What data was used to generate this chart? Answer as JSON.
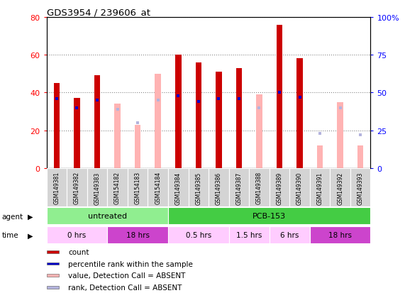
{
  "title": "GDS3954 / 239606_at",
  "samples": [
    "GSM149381",
    "GSM149382",
    "GSM149383",
    "GSM154182",
    "GSM154183",
    "GSM154184",
    "GSM149384",
    "GSM149385",
    "GSM149386",
    "GSM149387",
    "GSM149388",
    "GSM149389",
    "GSM149390",
    "GSM149391",
    "GSM149392",
    "GSM149393"
  ],
  "count_present": [
    45,
    37,
    49,
    null,
    null,
    null,
    60,
    56,
    51,
    53,
    null,
    76,
    58,
    null,
    null,
    null
  ],
  "count_absent": [
    null,
    null,
    null,
    34,
    23,
    50,
    null,
    null,
    null,
    null,
    39,
    null,
    null,
    12,
    35,
    12
  ],
  "rank_present": [
    46,
    40,
    45,
    null,
    null,
    null,
    48,
    44,
    46,
    46,
    null,
    50,
    47,
    null,
    null,
    null
  ],
  "rank_absent": [
    null,
    null,
    null,
    39,
    30,
    45,
    null,
    null,
    null,
    null,
    40,
    null,
    null,
    23,
    40,
    22
  ],
  "ylim_left": [
    0,
    80
  ],
  "ylim_right": [
    0,
    100
  ],
  "yticks_left": [
    0,
    20,
    40,
    60,
    80
  ],
  "yticks_right": [
    0,
    25,
    50,
    75,
    100
  ],
  "count_color": "#cc0000",
  "rank_color": "#0000cc",
  "absent_count_color": "#ffb3b3",
  "absent_rank_color": "#b3b3dd",
  "agent_groups": [
    {
      "label": "untreated",
      "start": 0,
      "end": 6,
      "color": "#90ee90"
    },
    {
      "label": "PCB-153",
      "start": 6,
      "end": 16,
      "color": "#44cc44"
    }
  ],
  "time_groups": [
    {
      "label": "0 hrs",
      "start": 0,
      "end": 3,
      "color": "#ffccff"
    },
    {
      "label": "18 hrs",
      "start": 3,
      "end": 6,
      "color": "#cc44cc"
    },
    {
      "label": "0.5 hrs",
      "start": 6,
      "end": 9,
      "color": "#ffccff"
    },
    {
      "label": "1.5 hrs",
      "start": 9,
      "end": 11,
      "color": "#ffccff"
    },
    {
      "label": "6 hrs",
      "start": 11,
      "end": 13,
      "color": "#ffccff"
    },
    {
      "label": "18 hrs",
      "start": 13,
      "end": 16,
      "color": "#cc44cc"
    }
  ],
  "legend_items": [
    {
      "label": "count",
      "color": "#cc0000"
    },
    {
      "label": "percentile rank within the sample",
      "color": "#0000cc"
    },
    {
      "label": "value, Detection Call = ABSENT",
      "color": "#ffb3b3"
    },
    {
      "label": "rank, Detection Call = ABSENT",
      "color": "#b3b3dd"
    }
  ]
}
